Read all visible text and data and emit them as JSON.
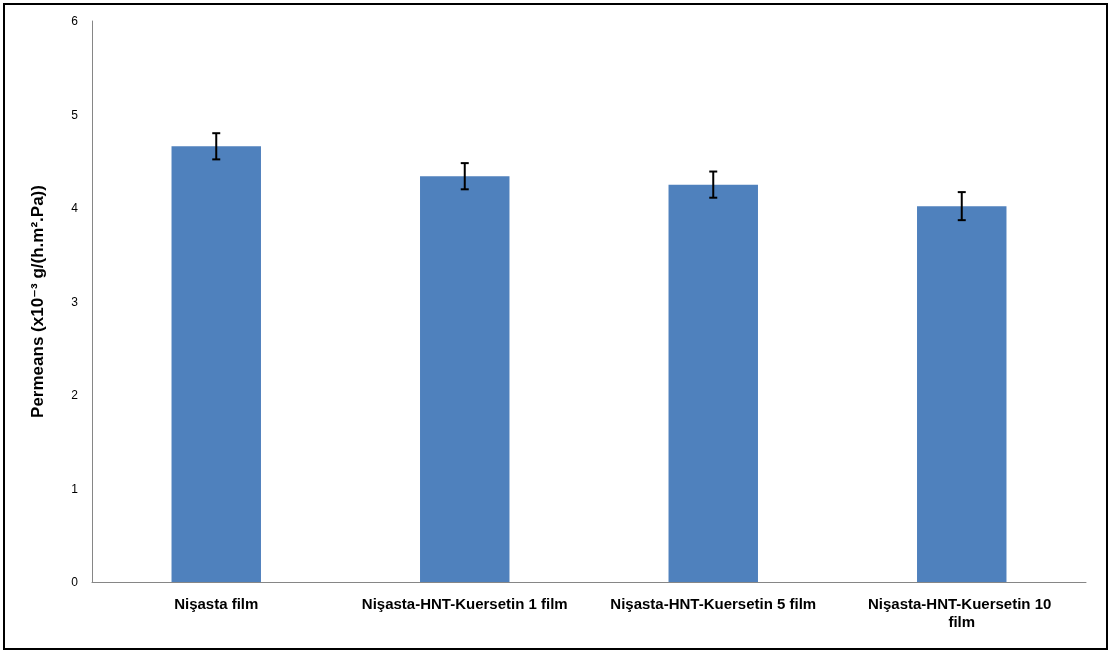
{
  "chart_data": {
    "type": "bar",
    "ylabel": "Permeans (x10⁻³ g/(h.m².Pa))",
    "categories": [
      "Nişasta film",
      "Nişasta-HNT-Kuersetin 1 film",
      "Nişasta-HNT-Kuersetin 5 film",
      "Nişasta-HNT-Kuersetin 10 film"
    ],
    "values": [
      4.66,
      4.34,
      4.25,
      4.02
    ],
    "errors": [
      0.14,
      0.14,
      0.14,
      0.15
    ],
    "color": "#4f81bd",
    "ylim": [
      0,
      6
    ],
    "yticks": [
      0,
      1,
      2,
      3,
      4,
      5,
      6
    ],
    "grid": false
  }
}
